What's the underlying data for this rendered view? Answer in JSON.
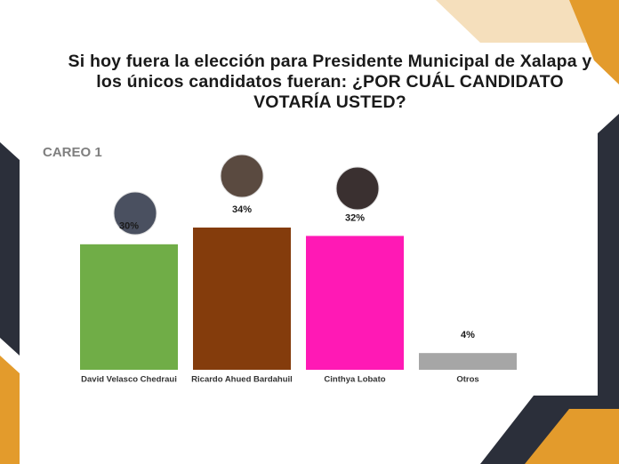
{
  "chart_data": {
    "type": "bar",
    "title": "Si hoy fuera la elección para Presidente Municipal de Xalapa y los únicos candidatos fueran: ¿POR CUÁL CANDIDATO VOTARÍA USTED?",
    "subtitle": "CAREO 1",
    "categories": [
      "David Velasco Chedraui",
      "Ricardo Ahued Bardahuil",
      "Cinthya Lobato",
      "Otros"
    ],
    "values": [
      30,
      34,
      32,
      4
    ],
    "value_labels": [
      "30%",
      "34%",
      "32%",
      "4%"
    ],
    "colors": [
      "#70ad47",
      "#843c0c",
      "#ff19b5",
      "#a6a6a6"
    ]
  }
}
